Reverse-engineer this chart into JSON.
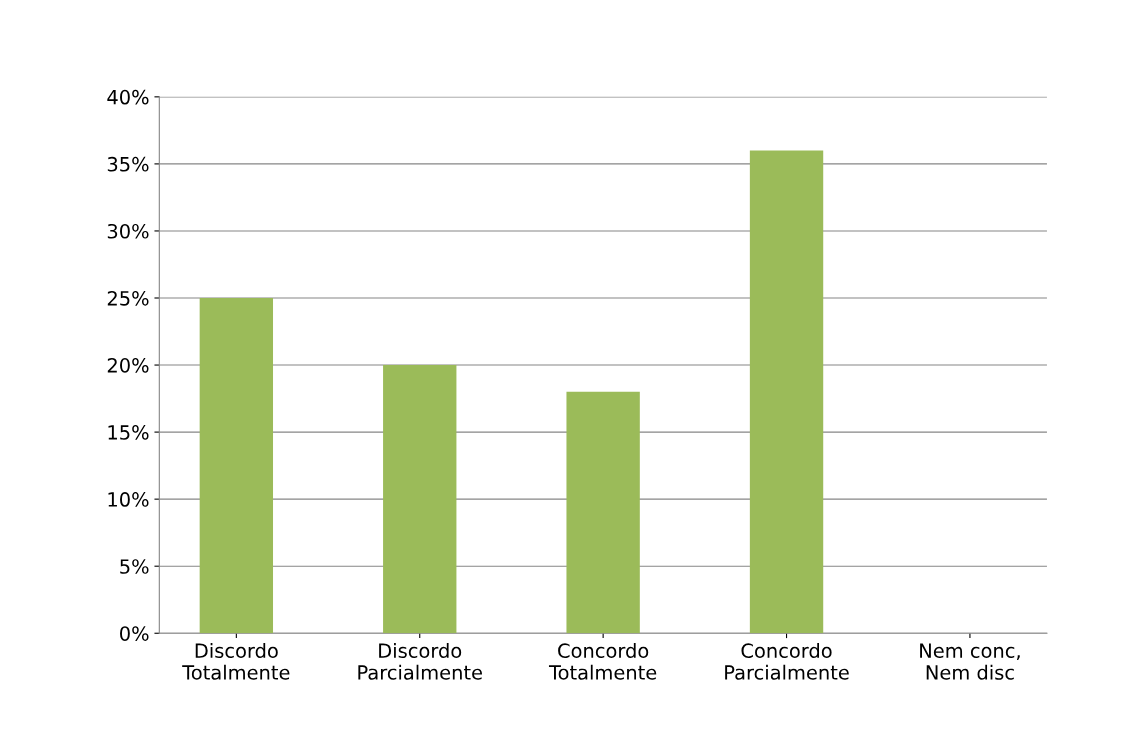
{
  "chart_data": {
    "type": "bar",
    "categories": [
      "Discordo\nTotalmente",
      "Discordo\nParcialmente",
      "Concordo\nTotalmente",
      "Concordo\nParcialmente",
      "Nem conc,\nNem disc"
    ],
    "values": [
      25,
      20,
      18,
      36,
      0
    ],
    "color": "#9bbb59",
    "ylim": [
      0,
      40
    ],
    "yticks": [
      {
        "value": 0,
        "label": "0%"
      },
      {
        "value": 5,
        "label": "5%"
      },
      {
        "value": 10,
        "label": "10%"
      },
      {
        "value": 15,
        "label": "15%"
      },
      {
        "value": 20,
        "label": "20%"
      },
      {
        "value": 25,
        "label": "25%"
      },
      {
        "value": 30,
        "label": "30%"
      },
      {
        "value": 35,
        "label": "35%"
      },
      {
        "value": 40,
        "label": "40%"
      }
    ],
    "grid": "y",
    "legend": false
  }
}
